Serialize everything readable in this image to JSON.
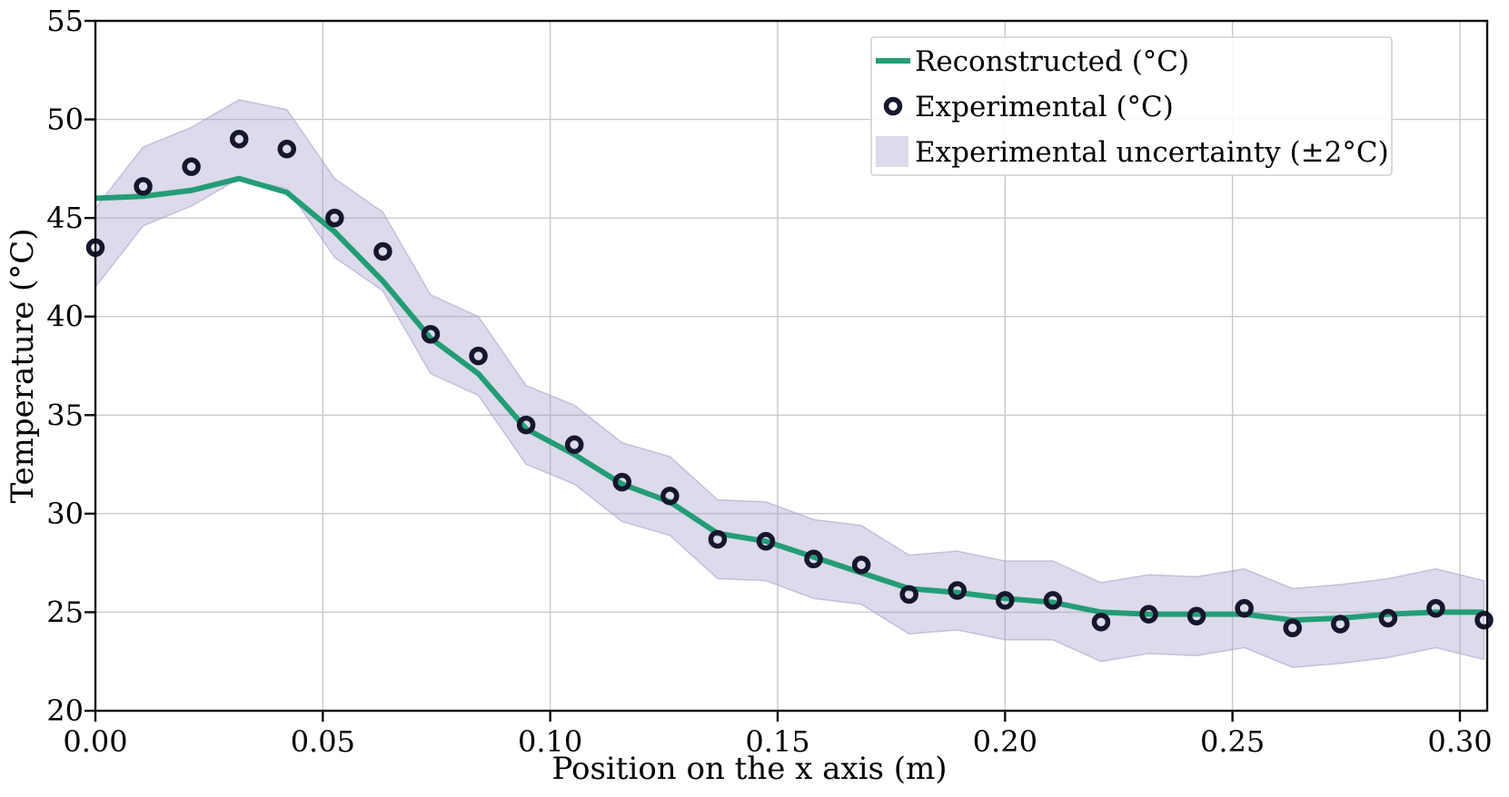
{
  "chart_data": {
    "type": "line",
    "title": "",
    "xlabel": "Position on the x axis (m)",
    "ylabel": "Temperature (°C)",
    "xlim": [
      0,
      0.306
    ],
    "ylim": [
      20,
      55
    ],
    "grid": true,
    "grid_color": "#c9c9c9",
    "legend_position": "upper right",
    "xticks": {
      "values": [
        0.0,
        0.05,
        0.1,
        0.15,
        0.2,
        0.25,
        0.3
      ],
      "labels": [
        "0.00",
        "0.05",
        "0.10",
        "0.15",
        "0.20",
        "0.25",
        "0.30"
      ]
    },
    "yticks": {
      "values": [
        20,
        25,
        30,
        35,
        40,
        45,
        50,
        55
      ],
      "labels": [
        "20",
        "25",
        "30",
        "35",
        "40",
        "45",
        "50",
        "55"
      ]
    },
    "x": [
      0.0,
      0.0105,
      0.0211,
      0.0316,
      0.0421,
      0.0526,
      0.0632,
      0.0737,
      0.0842,
      0.0947,
      0.1053,
      0.1158,
      0.1263,
      0.1368,
      0.1474,
      0.1579,
      0.1684,
      0.1789,
      0.1895,
      0.2,
      0.2105,
      0.2211,
      0.2316,
      0.2421,
      0.2526,
      0.2632,
      0.2737,
      0.2842,
      0.2947,
      0.3053
    ],
    "series": [
      {
        "name": "Reconstructed (°C)",
        "type": "line",
        "color": "#239d76",
        "line_width": 6,
        "values": [
          46.0,
          46.1,
          46.4,
          47.0,
          46.3,
          44.3,
          41.8,
          38.9,
          37.1,
          34.3,
          33.0,
          31.5,
          30.6,
          29.0,
          28.6,
          27.8,
          27.0,
          26.2,
          26.0,
          25.7,
          25.5,
          25.0,
          24.9,
          24.9,
          24.9,
          24.6,
          24.7,
          24.9,
          25.0,
          25.0
        ]
      },
      {
        "name": "Experimental (°C)",
        "type": "scatter",
        "marker": "open-circle",
        "color": "#16162d",
        "values": [
          43.5,
          46.6,
          47.6,
          49.0,
          48.5,
          45.0,
          43.3,
          39.1,
          38.0,
          34.5,
          33.5,
          31.6,
          30.9,
          28.7,
          28.6,
          27.7,
          27.4,
          25.9,
          26.1,
          25.6,
          25.6,
          24.5,
          24.9,
          24.8,
          25.2,
          24.2,
          24.4,
          24.7,
          25.2,
          24.6
        ]
      },
      {
        "name": "Experimental uncertainty (±2°C)",
        "type": "band",
        "color": "#a39eca",
        "fill_opacity": 0.38,
        "center_series": "Experimental (°C)",
        "half_width": 2
      }
    ]
  }
}
